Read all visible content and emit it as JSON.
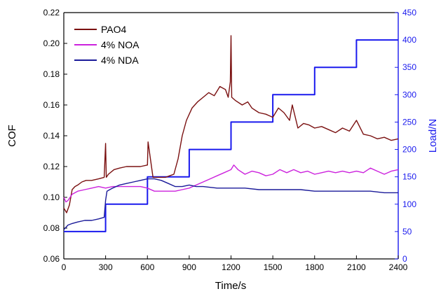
{
  "chart_data": {
    "type": "line",
    "title": "",
    "xlabel": "Time/s",
    "ylabel": "COF",
    "y2label": "Load/N",
    "xlim": [
      0,
      2400
    ],
    "ylim": [
      0.06,
      0.22
    ],
    "y2lim": [
      0,
      450
    ],
    "x_ticks": [
      "0",
      "300",
      "600",
      "900",
      "1200",
      "1500",
      "1800",
      "2100",
      "2400"
    ],
    "y_ticks": [
      "0.06",
      "0.08",
      "0.10",
      "0.12",
      "0.14",
      "0.16",
      "0.18",
      "0.20",
      "0.22"
    ],
    "y2_ticks": [
      "0",
      "50",
      "100",
      "150",
      "200",
      "250",
      "300",
      "350",
      "400",
      "450"
    ],
    "legend_position": "top-left",
    "series": [
      {
        "name": "PAO4",
        "color": "#7a1010",
        "axis": "left",
        "x": [
          0,
          20,
          40,
          60,
          80,
          100,
          130,
          160,
          200,
          250,
          290,
          300,
          305,
          320,
          360,
          400,
          450,
          500,
          550,
          600,
          605,
          640,
          700,
          730,
          760,
          790,
          820,
          850,
          880,
          920,
          960,
          1000,
          1040,
          1080,
          1120,
          1160,
          1180,
          1195,
          1200,
          1205,
          1230,
          1280,
          1320,
          1350,
          1400,
          1450,
          1500,
          1540,
          1580,
          1620,
          1640,
          1680,
          1720,
          1760,
          1800,
          1850,
          1900,
          1950,
          2000,
          2050,
          2100,
          2150,
          2200,
          2250,
          2300,
          2350,
          2400
        ],
        "y": [
          0.093,
          0.09,
          0.095,
          0.105,
          0.107,
          0.108,
          0.11,
          0.111,
          0.111,
          0.112,
          0.113,
          0.135,
          0.113,
          0.115,
          0.118,
          0.119,
          0.12,
          0.12,
          0.12,
          0.121,
          0.136,
          0.113,
          0.113,
          0.113,
          0.114,
          0.115,
          0.125,
          0.14,
          0.15,
          0.158,
          0.162,
          0.165,
          0.168,
          0.166,
          0.172,
          0.17,
          0.165,
          0.175,
          0.205,
          0.165,
          0.163,
          0.16,
          0.162,
          0.158,
          0.155,
          0.154,
          0.152,
          0.158,
          0.155,
          0.15,
          0.16,
          0.145,
          0.148,
          0.147,
          0.145,
          0.146,
          0.144,
          0.142,
          0.145,
          0.143,
          0.15,
          0.141,
          0.14,
          0.138,
          0.139,
          0.137,
          0.138
        ]
      },
      {
        "name": "4% NOA",
        "color": "#cc22dd",
        "axis": "left",
        "x": [
          0,
          15,
          30,
          60,
          100,
          150,
          200,
          250,
          300,
          350,
          400,
          450,
          500,
          550,
          600,
          650,
          700,
          750,
          800,
          850,
          900,
          950,
          1000,
          1050,
          1100,
          1150,
          1200,
          1220,
          1250,
          1300,
          1350,
          1400,
          1450,
          1500,
          1550,
          1600,
          1650,
          1700,
          1750,
          1800,
          1850,
          1900,
          1950,
          2000,
          2050,
          2100,
          2150,
          2200,
          2250,
          2300,
          2350,
          2400
        ],
        "y": [
          0.1,
          0.097,
          0.098,
          0.102,
          0.104,
          0.105,
          0.106,
          0.107,
          0.106,
          0.107,
          0.107,
          0.107,
          0.107,
          0.107,
          0.106,
          0.104,
          0.104,
          0.104,
          0.104,
          0.105,
          0.106,
          0.108,
          0.11,
          0.112,
          0.114,
          0.116,
          0.118,
          0.121,
          0.118,
          0.115,
          0.117,
          0.116,
          0.114,
          0.115,
          0.118,
          0.116,
          0.118,
          0.116,
          0.117,
          0.115,
          0.116,
          0.117,
          0.116,
          0.117,
          0.116,
          0.117,
          0.116,
          0.119,
          0.117,
          0.115,
          0.117,
          0.118
        ]
      },
      {
        "name": "4% NDA",
        "color": "#1a1a99",
        "axis": "left",
        "x": [
          0,
          10,
          30,
          60,
          100,
          150,
          200,
          250,
          290,
          300,
          310,
          350,
          400,
          450,
          500,
          550,
          600,
          650,
          700,
          750,
          800,
          850,
          900,
          950,
          1000,
          1100,
          1200,
          1300,
          1400,
          1500,
          1600,
          1700,
          1800,
          1900,
          2000,
          2100,
          2200,
          2300,
          2400
        ],
        "y": [
          0.079,
          0.08,
          0.082,
          0.083,
          0.084,
          0.085,
          0.085,
          0.086,
          0.087,
          0.098,
          0.104,
          0.106,
          0.108,
          0.109,
          0.11,
          0.111,
          0.112,
          0.112,
          0.111,
          0.109,
          0.107,
          0.107,
          0.108,
          0.107,
          0.107,
          0.106,
          0.106,
          0.106,
          0.105,
          0.105,
          0.105,
          0.105,
          0.104,
          0.104,
          0.104,
          0.104,
          0.104,
          0.103,
          0.103
        ]
      },
      {
        "name": "Load",
        "color": "#1a1aee",
        "axis": "right",
        "x": [
          0,
          300,
          300,
          600,
          600,
          900,
          900,
          1200,
          1200,
          1500,
          1500,
          1800,
          1800,
          2100,
          2100,
          2400
        ],
        "y": [
          50,
          50,
          100,
          100,
          150,
          150,
          200,
          200,
          250,
          250,
          300,
          300,
          350,
          350,
          400,
          400
        ]
      }
    ]
  }
}
